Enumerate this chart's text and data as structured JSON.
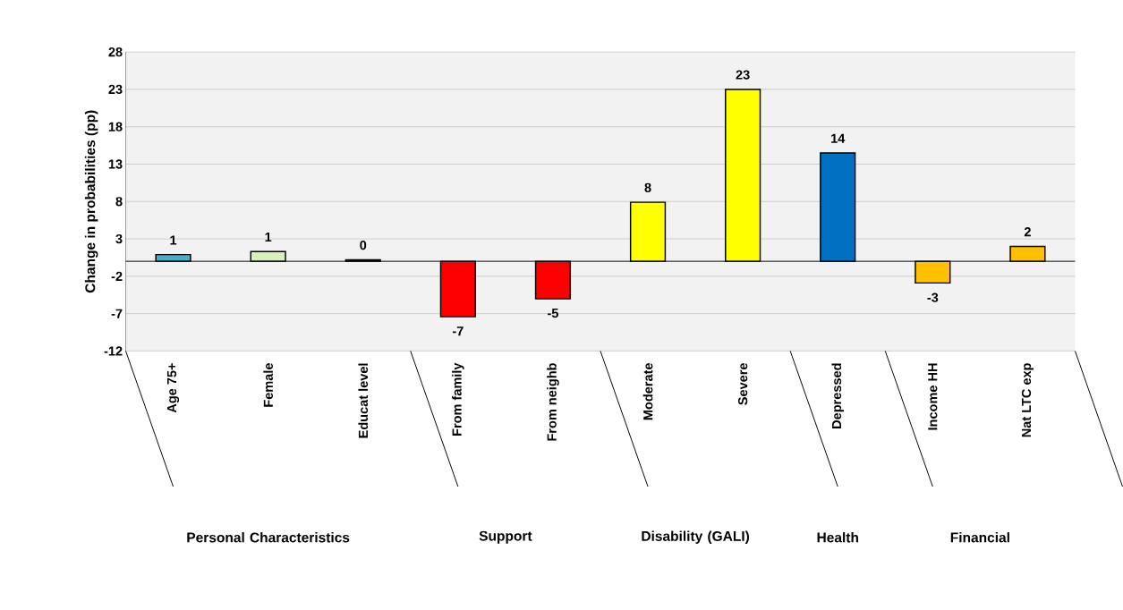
{
  "chart_data": {
    "type": "bar",
    "ylabel": "Change in probabilities (pp)",
    "categories": [
      "Age 75+",
      "Female",
      "Educat level",
      "From family",
      "From neighb",
      "Moderate",
      "Severe",
      "Depressed",
      "Income HH",
      "Nat LTC exp"
    ],
    "values": [
      0.9,
      1.3,
      0.2,
      -7.4,
      -5.0,
      7.9,
      23.0,
      14.5,
      -2.9,
      2.0
    ],
    "value_labels": [
      "1",
      "1",
      "0",
      "-7",
      "-5",
      "8",
      "23",
      "14",
      "-3",
      "2"
    ],
    "colors": [
      "#4bacc6",
      "#d8f0c0",
      "#404040",
      "#ff0000",
      "#ff0000",
      "#ffff00",
      "#ffff00",
      "#0070c0",
      "#ffc000",
      "#ffc000"
    ],
    "annotations": [
      "Personal Characteristics",
      "Support",
      "Disability (GALI)",
      "Health",
      "Financial"
    ],
    "ylim": [
      -12,
      28
    ],
    "yticks": [
      -12,
      -7,
      -2,
      3,
      8,
      13,
      18,
      23,
      28
    ],
    "grid": "y"
  }
}
